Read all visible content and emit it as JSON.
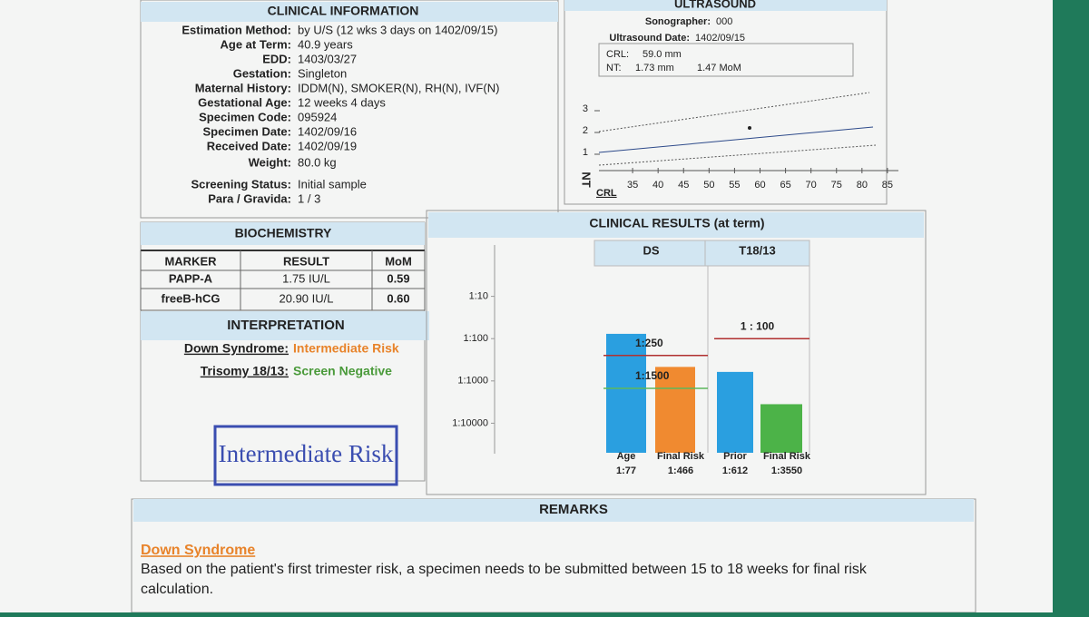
{
  "clinical_information": {
    "title": "CLINICAL INFORMATION",
    "fields": [
      {
        "label": "Estimation Method:",
        "value": "by U/S (12 wks 3 days on 1402/09/15)"
      },
      {
        "label": "Age at Term:",
        "value": "40.9 years"
      },
      {
        "label": "EDD:",
        "value": "1403/03/27"
      },
      {
        "label": "Gestation:",
        "value": "Singleton"
      },
      {
        "label": "Maternal History:",
        "value": "IDDM(N), SMOKER(N), RH(N), IVF(N)"
      },
      {
        "label": "Gestational Age:",
        "value": "12 weeks 4 days"
      },
      {
        "label": "Specimen Code:",
        "value": "095924"
      },
      {
        "label": "Specimen Date:",
        "value": "1402/09/16"
      },
      {
        "label": "Received Date:",
        "value": "1402/09/19"
      },
      {
        "label": "Weight:",
        "value": "80.0 kg"
      },
      {
        "label": "Screening Status:",
        "value": "Initial sample"
      },
      {
        "label": "Para / Gravida:",
        "value": "1 / 3"
      }
    ]
  },
  "ultrasound": {
    "title": "ULTRASOUND",
    "sonographer": {
      "label": "Sonographer:",
      "value": "000"
    },
    "date": {
      "label": "Ultrasound Date:",
      "value": "1402/09/15"
    },
    "crl": {
      "label": "CRL:",
      "value": "59.0 mm"
    },
    "nt": {
      "label": "NT:",
      "value": "1.73 mm",
      "mom": "1.47 MoM"
    },
    "chart": {
      "y_label": "NT",
      "x_label": "CRL",
      "xlim": [
        30,
        90
      ],
      "xticks": [
        35,
        40,
        45,
        50,
        55,
        60,
        65,
        70,
        75,
        80,
        85
      ],
      "ylim": [
        0,
        4
      ],
      "yticks": [
        1,
        2,
        3
      ]
    }
  },
  "biochemistry": {
    "title": "BIOCHEMISTRY",
    "columns": [
      "MARKER",
      "RESULT",
      "MoM"
    ],
    "rows": [
      [
        "PAPP-A",
        "1.75 IU/L",
        "0.59"
      ],
      [
        "freeB-hCG",
        "20.90 IU/L",
        "0.60"
      ]
    ]
  },
  "interpretation": {
    "title": "INTERPRETATION",
    "items": [
      {
        "label": "Down Syndrome:",
        "value": "Intermediate Risk",
        "color": "#e8832a"
      },
      {
        "label": "Trisomy 18/13:",
        "value": "Screen Negative",
        "color": "#4a9a3a"
      }
    ]
  },
  "stamp": "Intermediate Risk",
  "clinical_results": {
    "title": "CLINICAL RESULTS (at term)",
    "groups": [
      "DS",
      "T18/13"
    ],
    "log": true,
    "ylim": [
      1,
      50000
    ],
    "yticks": [
      {
        "value": 10,
        "label": "1:10"
      },
      {
        "value": 100,
        "label": "1:100"
      },
      {
        "value": 1000,
        "label": "1:1000"
      },
      {
        "value": 10000,
        "label": "1:10000"
      }
    ],
    "cutoffs": [
      {
        "value": 250,
        "label": "1:250",
        "color": "#b03030",
        "group": 0
      },
      {
        "value": 1500,
        "label": "1:1500",
        "color": "#5cb85c",
        "group": 0
      },
      {
        "value": 100,
        "label": "1 : 100",
        "color": "#b03030",
        "group": 1
      }
    ],
    "bars": [
      {
        "name": "Age",
        "value": 77,
        "value_label": "1:77",
        "color": "#2a9fe0"
      },
      {
        "name": "Final Risk",
        "value": 466,
        "value_label": "1:466",
        "color": "#f08a30"
      },
      {
        "name": "Prior",
        "value": 612,
        "value_label": "1:612",
        "color": "#2a9fe0"
      },
      {
        "name": "Final Risk",
        "value": 3550,
        "value_label": "1:3550",
        "color": "#4cb348"
      }
    ]
  },
  "remarks": {
    "title": "REMARKS",
    "heading": "Down Syndrome",
    "text": "Based on the patient's first trimester risk, a specimen needs to be submitted between 15 to 18 weeks for final risk calculation."
  }
}
